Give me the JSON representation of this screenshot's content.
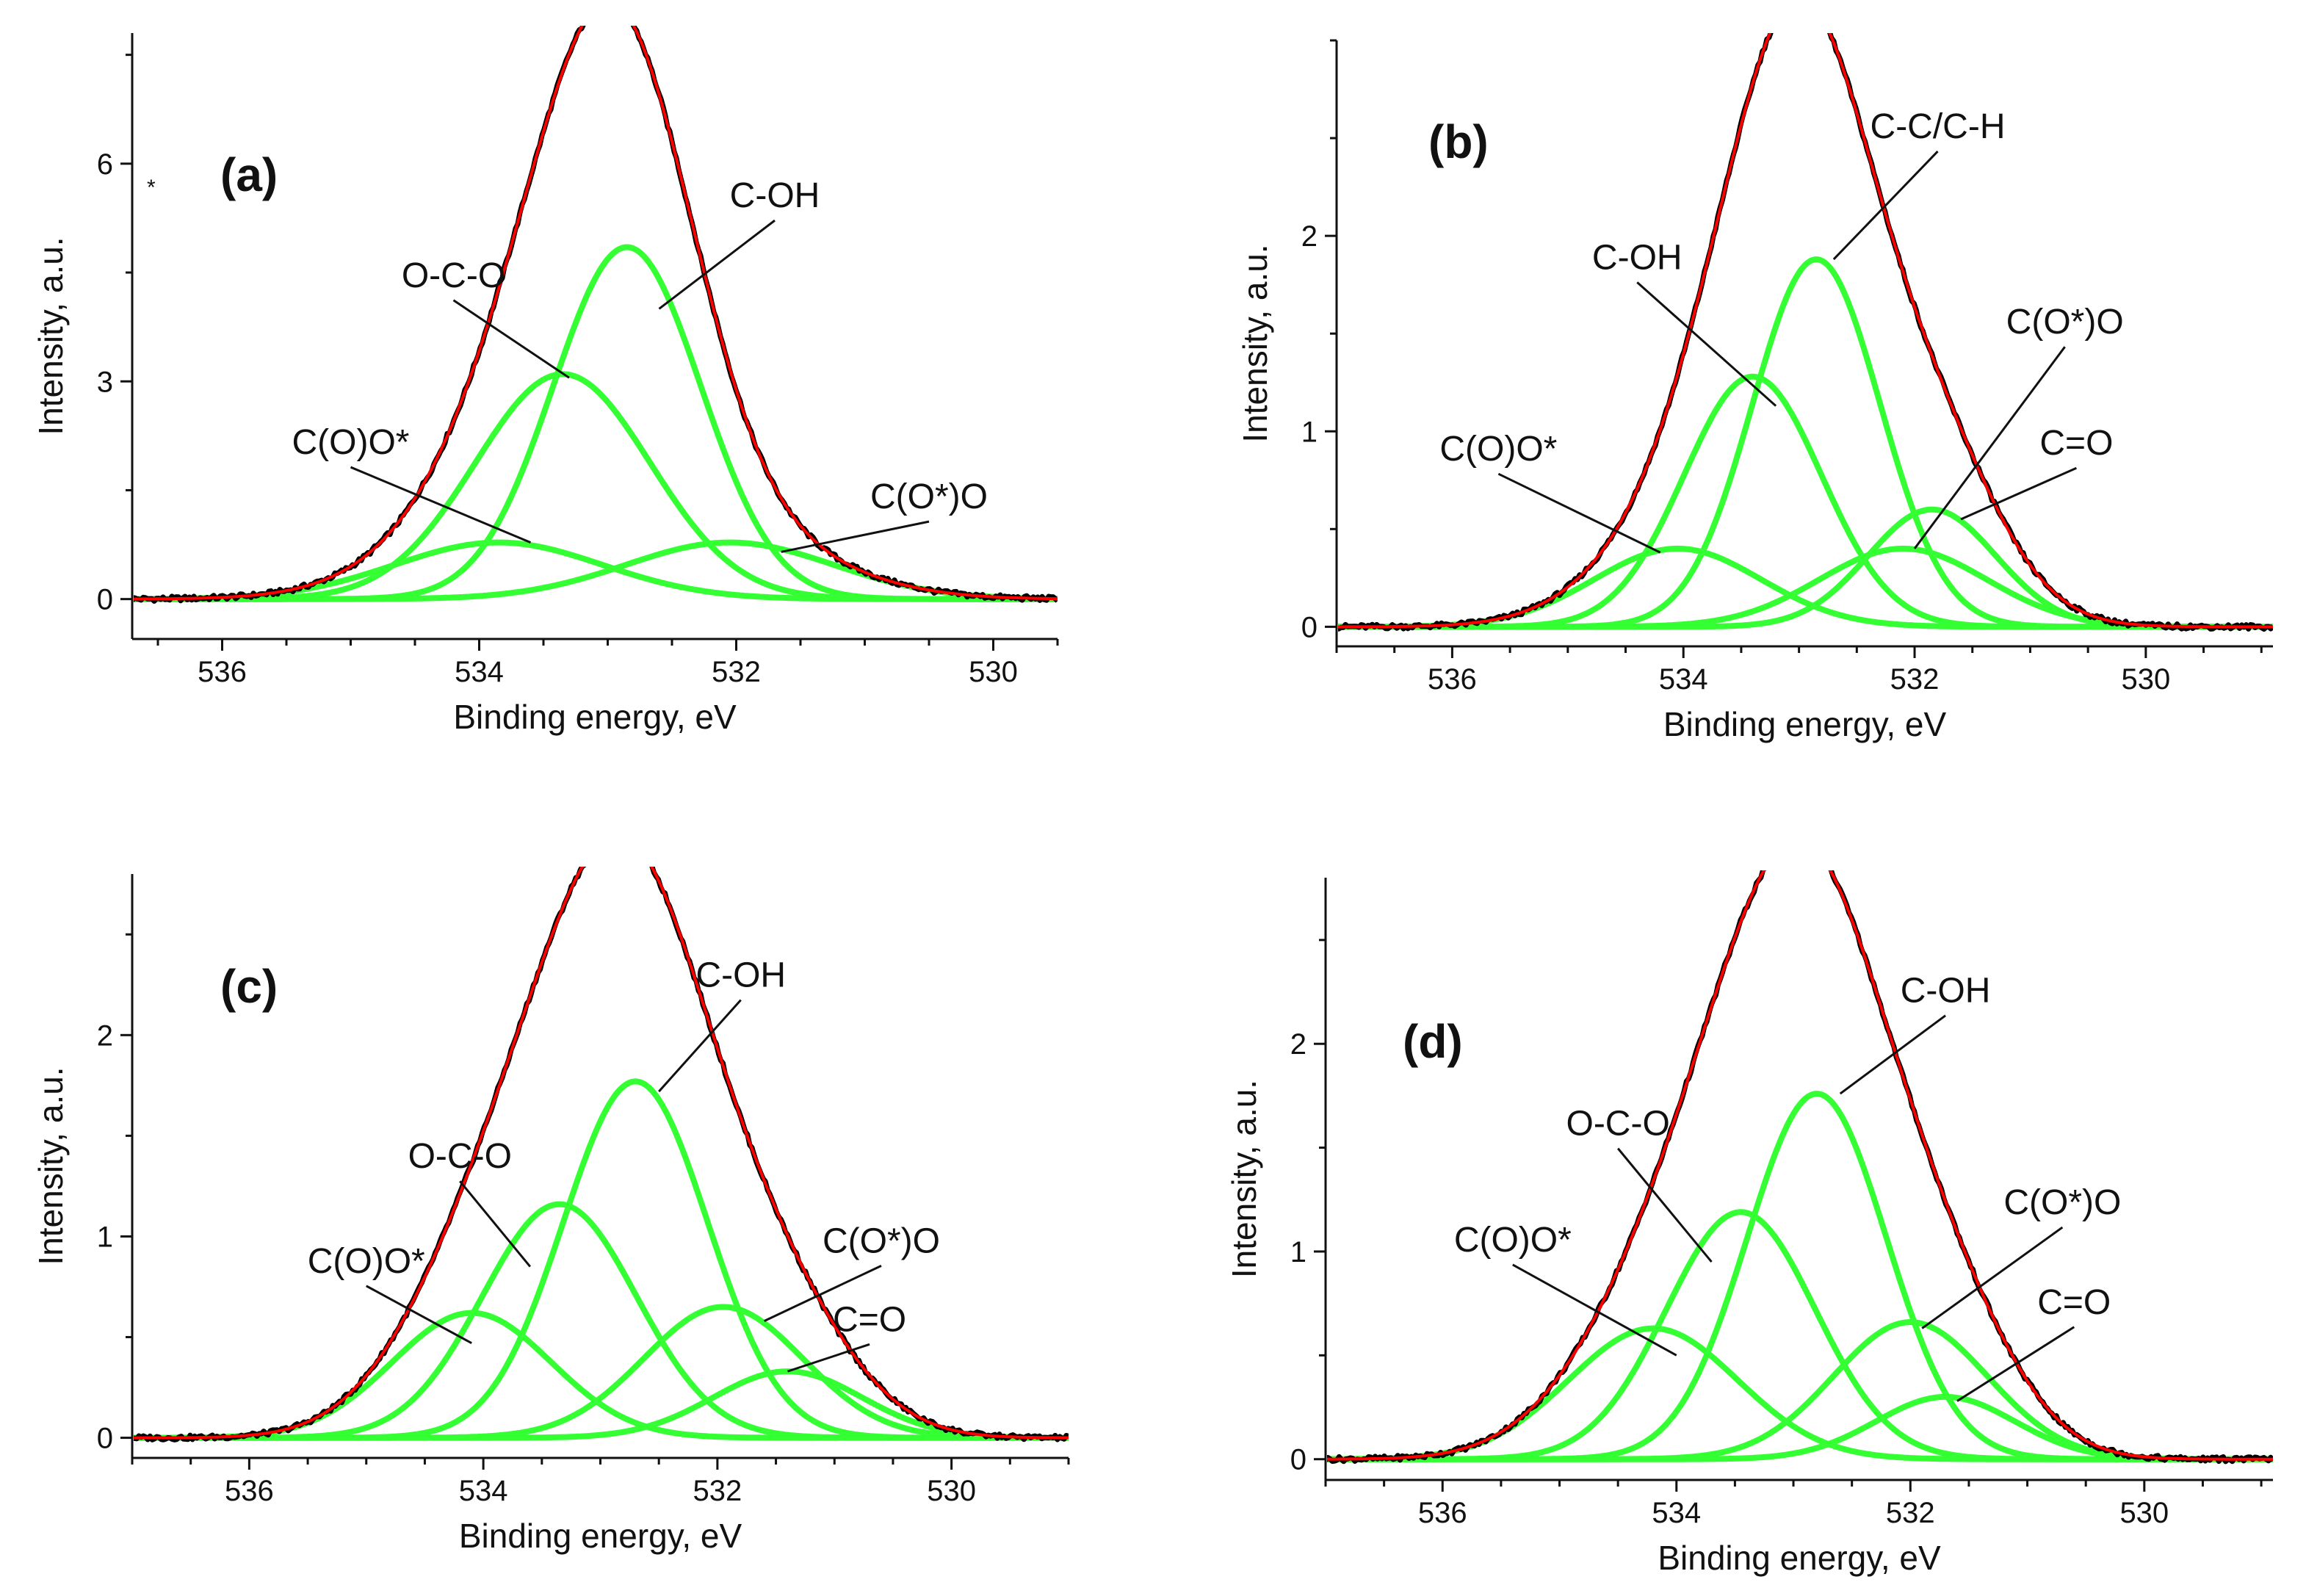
{
  "figure": {
    "colors": {
      "axis": "#111111",
      "envelope": "#ff0000",
      "experimental": "#000000",
      "component": "#33ff33"
    }
  },
  "chart_data": [
    {
      "panel_label": "(a)",
      "type": "line",
      "title": "",
      "xlabel": "Binding energy, eV",
      "ylabel": "Intensity, a.u.",
      "xlim": [
        536.7,
        529.5
      ],
      "ylim": [
        -0.55,
        7.8
      ],
      "xticks": [
        536,
        534,
        532,
        530
      ],
      "yticks": [
        0,
        3,
        6
      ],
      "stray_mark": "*",
      "components": [
        {
          "name": "C(O)O*",
          "center": 533.85,
          "height": 0.78,
          "fwhm": 1.9
        },
        {
          "name": "O-C-O",
          "center": 533.35,
          "height": 3.1,
          "fwhm": 1.6
        },
        {
          "name": "C-OH",
          "center": 532.85,
          "height": 4.85,
          "fwhm": 1.35
        },
        {
          "name": "C(O*)O",
          "center": 532.05,
          "height": 0.78,
          "fwhm": 1.9
        }
      ],
      "annotations": [
        {
          "text": "C(O)O*",
          "x": 535.0,
          "y": 2.0,
          "point_x": 533.6,
          "point_y": 0.78
        },
        {
          "text": "O-C-O",
          "x": 534.2,
          "y": 4.3,
          "point_x": 533.3,
          "point_y": 3.05
        },
        {
          "text": "C-OH",
          "x": 531.7,
          "y": 5.4,
          "point_x": 532.6,
          "point_y": 4.0
        },
        {
          "text": "C(O*)O",
          "x": 530.5,
          "y": 1.25,
          "point_x": 531.65,
          "point_y": 0.65
        }
      ],
      "series": [
        {
          "name": "experimental",
          "color": "#000000"
        },
        {
          "name": "envelope fit",
          "color": "#ff0000"
        },
        {
          "name": "components",
          "color": "#33ff33"
        }
      ]
    },
    {
      "panel_label": "(b)",
      "type": "line",
      "title": "",
      "xlabel": "Binding energy, eV",
      "ylabel": "Intensity, a.u.",
      "xlim": [
        537.0,
        528.9
      ],
      "ylim": [
        -0.1,
        3.0
      ],
      "xticks": [
        536,
        534,
        532,
        530
      ],
      "yticks": [
        0,
        1,
        2
      ],
      "components": [
        {
          "name": "C(O)O*",
          "center": 534.05,
          "height": 0.4,
          "fwhm": 1.7
        },
        {
          "name": "C-OH",
          "center": 533.4,
          "height": 1.28,
          "fwhm": 1.4
        },
        {
          "name": "C-C/C-H",
          "center": 532.85,
          "height": 1.88,
          "fwhm": 1.3
        },
        {
          "name": "C(O*)O",
          "center": 532.1,
          "height": 0.4,
          "fwhm": 1.7
        },
        {
          "name": "C=O",
          "center": 531.85,
          "height": 0.6,
          "fwhm": 1.3
        }
      ],
      "annotations": [
        {
          "text": "C(O)O*",
          "x": 535.6,
          "y": 0.85,
          "point_x": 534.2,
          "point_y": 0.38
        },
        {
          "text": "C-OH",
          "x": 534.4,
          "y": 1.83,
          "point_x": 533.2,
          "point_y": 1.13
        },
        {
          "text": "C-C/C-H",
          "x": 531.8,
          "y": 2.5,
          "point_x": 532.7,
          "point_y": 1.88
        },
        {
          "text": "C(O*)O",
          "x": 530.7,
          "y": 1.5,
          "point_x": 532.0,
          "point_y": 0.4
        },
        {
          "text": "C=O",
          "x": 530.6,
          "y": 0.88,
          "point_x": 531.6,
          "point_y": 0.55
        }
      ],
      "series": [
        {
          "name": "experimental",
          "color": "#000000"
        },
        {
          "name": "envelope fit",
          "color": "#ff0000"
        },
        {
          "name": "components",
          "color": "#33ff33"
        }
      ]
    },
    {
      "panel_label": "(c)",
      "type": "line",
      "title": "",
      "xlabel": "Binding energy, eV",
      "ylabel": "Intensity, a.u.",
      "xlim": [
        537.0,
        529.0
      ],
      "ylim": [
        -0.1,
        2.8
      ],
      "xticks": [
        536,
        534,
        532,
        530
      ],
      "yticks": [
        0,
        1,
        2
      ],
      "components": [
        {
          "name": "C(O)O*",
          "center": 534.1,
          "height": 0.62,
          "fwhm": 1.6
        },
        {
          "name": "O-C-O",
          "center": 533.35,
          "height": 1.16,
          "fwhm": 1.55
        },
        {
          "name": "C-OH",
          "center": 532.7,
          "height": 1.77,
          "fwhm": 1.45
        },
        {
          "name": "C(O*)O",
          "center": 531.95,
          "height": 0.65,
          "fwhm": 1.6
        },
        {
          "name": "C=O",
          "center": 531.4,
          "height": 0.33,
          "fwhm": 1.5
        }
      ],
      "annotations": [
        {
          "text": "C(O)O*",
          "x": 535.0,
          "y": 0.82,
          "point_x": 534.1,
          "point_y": 0.47
        },
        {
          "text": "O-C-O",
          "x": 534.2,
          "y": 1.34,
          "point_x": 533.6,
          "point_y": 0.85
        },
        {
          "text": "C-OH",
          "x": 531.8,
          "y": 2.24,
          "point_x": 532.5,
          "point_y": 1.72
        },
        {
          "text": "C(O*)O",
          "x": 530.6,
          "y": 0.92,
          "point_x": 531.6,
          "point_y": 0.58
        },
        {
          "text": "C=O",
          "x": 530.7,
          "y": 0.53,
          "point_x": 531.4,
          "point_y": 0.33
        }
      ],
      "series": [
        {
          "name": "experimental",
          "color": "#000000"
        },
        {
          "name": "envelope fit",
          "color": "#ff0000"
        },
        {
          "name": "components",
          "color": "#33ff33"
        }
      ]
    },
    {
      "panel_label": "(d)",
      "type": "line",
      "title": "",
      "xlabel": "Binding energy, eV",
      "ylabel": "Intensity, a.u.",
      "xlim": [
        537.0,
        528.9
      ],
      "ylim": [
        -0.1,
        2.8
      ],
      "xticks": [
        536,
        534,
        532,
        530
      ],
      "yticks": [
        0,
        1,
        2
      ],
      "components": [
        {
          "name": "C(O)O*",
          "center": 534.2,
          "height": 0.63,
          "fwhm": 1.7
        },
        {
          "name": "O-C-O",
          "center": 533.45,
          "height": 1.19,
          "fwhm": 1.5
        },
        {
          "name": "C-OH",
          "center": 532.8,
          "height": 1.76,
          "fwhm": 1.4
        },
        {
          "name": "C(O*)O",
          "center": 532.0,
          "height": 0.66,
          "fwhm": 1.55
        },
        {
          "name": "C=O",
          "center": 531.7,
          "height": 0.3,
          "fwhm": 1.4
        }
      ],
      "annotations": [
        {
          "text": "C(O)O*",
          "x": 535.4,
          "y": 1.0,
          "point_x": 534.0,
          "point_y": 0.5
        },
        {
          "text": "O-C-O",
          "x": 534.5,
          "y": 1.56,
          "point_x": 533.7,
          "point_y": 0.95
        },
        {
          "text": "C-OH",
          "x": 531.7,
          "y": 2.2,
          "point_x": 532.6,
          "point_y": 1.76
        },
        {
          "text": "C(O*)O",
          "x": 530.7,
          "y": 1.18,
          "point_x": 531.9,
          "point_y": 0.63
        },
        {
          "text": "C=O",
          "x": 530.6,
          "y": 0.7,
          "point_x": 531.6,
          "point_y": 0.28
        }
      ],
      "series": [
        {
          "name": "experimental",
          "color": "#000000"
        },
        {
          "name": "envelope fit",
          "color": "#ff0000"
        },
        {
          "name": "components",
          "color": "#33ff33"
        }
      ]
    }
  ]
}
